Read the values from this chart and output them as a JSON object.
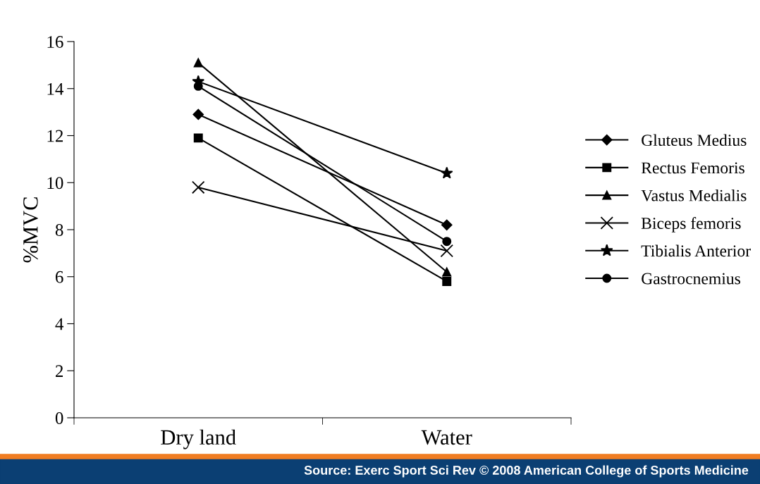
{
  "chart_data": {
    "type": "line",
    "ylabel": "%MVC",
    "categories": [
      "Dry land",
      "Water"
    ],
    "ylim": [
      0,
      16
    ],
    "yticks": [
      0,
      2,
      4,
      6,
      8,
      10,
      12,
      14,
      16
    ],
    "grid": false,
    "legend": "right",
    "series": [
      {
        "name": "Gluteus Medius",
        "color": "#000000",
        "marker": "diamond",
        "values": [
          12.9,
          8.2
        ]
      },
      {
        "name": "Rectus Femoris",
        "color": "#000000",
        "marker": "square",
        "values": [
          11.9,
          5.8
        ]
      },
      {
        "name": "Vastus Medialis",
        "color": "#000000",
        "marker": "triangle",
        "values": [
          15.1,
          6.2
        ]
      },
      {
        "name": "Biceps femoris",
        "color": "#000000",
        "marker": "cross",
        "values": [
          9.8,
          7.1
        ]
      },
      {
        "name": "Tibialis Anterior",
        "color": "#000000",
        "marker": "star",
        "values": [
          14.3,
          10.4
        ]
      },
      {
        "name": "Gastrocnemius",
        "color": "#000000",
        "marker": "circle",
        "values": [
          14.1,
          7.5
        ]
      }
    ],
    "annotations": [
      "Source: Exerc Sport Sci Rev © 2008 American College of Sports Medicine"
    ]
  }
}
